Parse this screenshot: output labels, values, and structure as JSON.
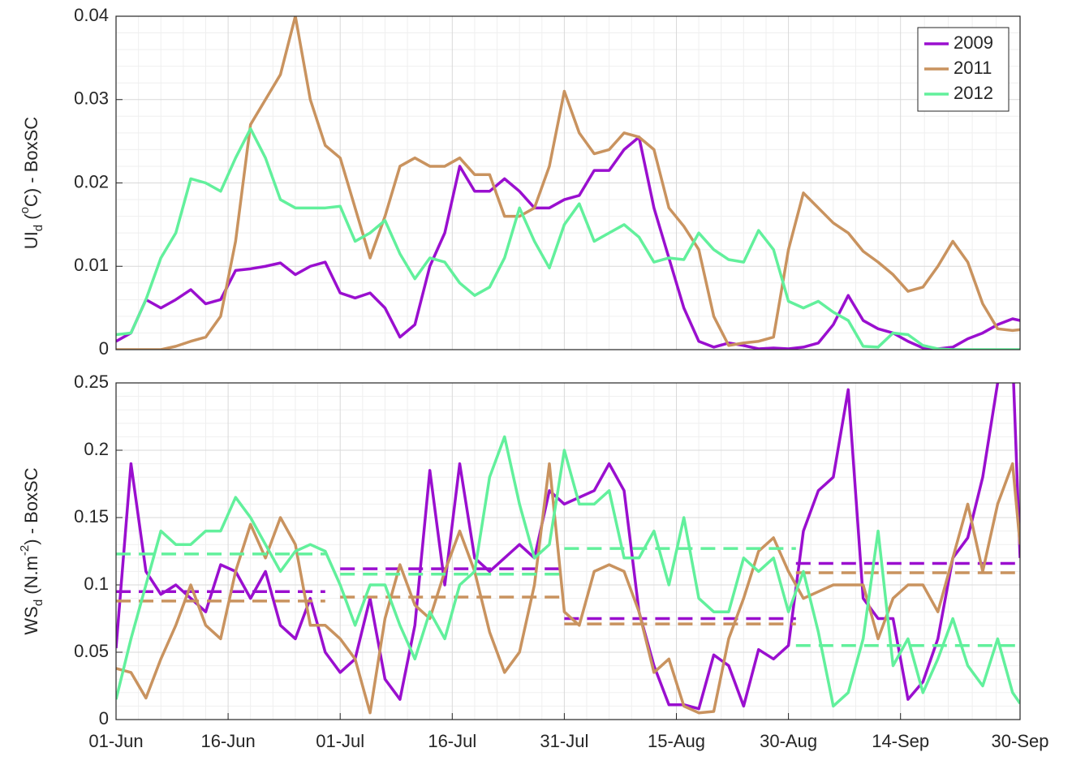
{
  "chart_data": [
    {
      "type": "line",
      "ylabel": [
        "UI",
        "d",
        " (",
        "o",
        "C) - BoxSC"
      ],
      "x": [
        0,
        2,
        4,
        6,
        8,
        10,
        12,
        14,
        16,
        18,
        20,
        22,
        24,
        26,
        28,
        30,
        32,
        34,
        36,
        38,
        40,
        42,
        44,
        46,
        48,
        50,
        52,
        54,
        56,
        58,
        60,
        62,
        64,
        66,
        68,
        70,
        72,
        74,
        76,
        78,
        80,
        82,
        84,
        86,
        88,
        90,
        92,
        94,
        96,
        98,
        100,
        102,
        104,
        106,
        108,
        110,
        112,
        114,
        116,
        118,
        120,
        121
      ],
      "xlim": [
        0,
        121
      ],
      "ylim": [
        0,
        0.04
      ],
      "yticks": [
        0,
        0.01,
        0.02,
        0.03,
        0.04
      ],
      "grid": true,
      "legend": "upper right",
      "series": [
        {
          "name": "2009",
          "color": "#9a0fcf",
          "values": [
            0.001,
            0.002,
            0.006,
            0.005,
            0.006,
            0.0072,
            0.0055,
            0.006,
            0.0095,
            0.0097,
            0.01,
            0.0104,
            0.009,
            0.01,
            0.0105,
            0.0068,
            0.0062,
            0.0068,
            0.005,
            0.0015,
            0.003,
            0.01,
            0.014,
            0.022,
            0.019,
            0.019,
            0.0205,
            0.019,
            0.017,
            0.017,
            0.018,
            0.0185,
            0.0215,
            0.0215,
            0.024,
            0.0255,
            0.017,
            0.011,
            0.005,
            0.001,
            0.0003,
            0.0008,
            0.0005,
            0.0001,
            0.0002,
            0.0001,
            0.0003,
            0.0008,
            0.003,
            0.0065,
            0.0035,
            0.0025,
            0.002,
            0.001,
            0.0002,
            0.0001,
            0.0003,
            0.0013,
            0.002,
            0.003,
            0.0037,
            0.0035
          ]
        },
        {
          "name": "2011",
          "color": "#c9935f",
          "values": [
            0,
            0,
            0,
            0,
            0.0004,
            0.001,
            0.0015,
            0.004,
            0.013,
            0.027,
            0.03,
            0.033,
            0.04,
            0.03,
            0.0245,
            0.023,
            0.017,
            0.011,
            0.016,
            0.022,
            0.023,
            0.022,
            0.022,
            0.023,
            0.021,
            0.021,
            0.016,
            0.016,
            0.017,
            0.022,
            0.031,
            0.026,
            0.0235,
            0.024,
            0.026,
            0.0255,
            0.024,
            0.017,
            0.0148,
            0.012,
            0.004,
            0.0005,
            0.0008,
            0.001,
            0.0015,
            0.012,
            0.0188,
            0.017,
            0.0152,
            0.014,
            0.0118,
            0.0105,
            0.009,
            0.007,
            0.0075,
            0.01,
            0.013,
            0.0105,
            0.0055,
            0.0025,
            0.0023,
            0.0024
          ]
        },
        {
          "name": "2012",
          "color": "#62f09c",
          "values": [
            0.0018,
            0.002,
            0.006,
            0.011,
            0.014,
            0.0205,
            0.02,
            0.019,
            0.023,
            0.0265,
            0.023,
            0.018,
            0.017,
            0.017,
            0.017,
            0.0172,
            0.013,
            0.014,
            0.0155,
            0.0115,
            0.0085,
            0.011,
            0.0105,
            0.008,
            0.0065,
            0.0075,
            0.011,
            0.017,
            0.013,
            0.0098,
            0.015,
            0.0175,
            0.013,
            0.014,
            0.015,
            0.0135,
            0.0105,
            0.011,
            0.0108,
            0.014,
            0.012,
            0.0108,
            0.0105,
            0.0143,
            0.012,
            0.0058,
            0.005,
            0.0058,
            0.0045,
            0.0035,
            0.0004,
            0.0003,
            0.002,
            0.0018,
            0.0005,
            0.0001,
            0,
            0,
            0,
            0,
            0,
            0
          ]
        }
      ]
    },
    {
      "type": "line",
      "ylabel": [
        "WS",
        "d",
        " (N.m",
        "-2",
        ") - BoxSC"
      ],
      "x": [
        0,
        2,
        4,
        6,
        8,
        10,
        12,
        14,
        16,
        18,
        20,
        22,
        24,
        26,
        28,
        30,
        32,
        34,
        36,
        38,
        40,
        42,
        44,
        46,
        48,
        50,
        52,
        54,
        56,
        58,
        60,
        62,
        64,
        66,
        68,
        70,
        72,
        74,
        76,
        78,
        80,
        82,
        84,
        86,
        88,
        90,
        92,
        94,
        96,
        98,
        100,
        102,
        104,
        106,
        108,
        110,
        112,
        114,
        116,
        118,
        120,
        121
      ],
      "xlim": [
        0,
        121
      ],
      "xticks": [
        {
          "value": 0,
          "label": "01-Jun"
        },
        {
          "value": 15,
          "label": "16-Jun"
        },
        {
          "value": 30,
          "label": "01-Jul"
        },
        {
          "value": 45,
          "label": "16-Jul"
        },
        {
          "value": 60,
          "label": "31-Jul"
        },
        {
          "value": 75,
          "label": "15-Aug"
        },
        {
          "value": 90,
          "label": "30-Aug"
        },
        {
          "value": 105,
          "label": "14-Sep"
        },
        {
          "value": 121,
          "label": "30-Sep"
        }
      ],
      "ylim": [
        0,
        0.25
      ],
      "yticks": [
        0,
        0.05,
        0.1,
        0.15,
        0.2,
        0.25
      ],
      "grid": true,
      "mean_x0": [
        0,
        30,
        60,
        91
      ],
      "mean_x1": [
        28,
        60,
        91,
        121
      ],
      "series": [
        {
          "color": "#9a0fcf",
          "means": [
            0.095,
            0.112,
            0.075,
            0.116
          ],
          "values": [
            0.053,
            0.19,
            0.11,
            0.093,
            0.1,
            0.09,
            0.08,
            0.115,
            0.11,
            0.09,
            0.11,
            0.07,
            0.06,
            0.09,
            0.05,
            0.035,
            0.045,
            0.09,
            0.03,
            0.015,
            0.07,
            0.185,
            0.1,
            0.19,
            0.12,
            0.11,
            0.12,
            0.13,
            0.12,
            0.17,
            0.16,
            0.165,
            0.17,
            0.19,
            0.17,
            0.08,
            0.04,
            0.011,
            0.011,
            0.008,
            0.048,
            0.04,
            0.01,
            0.052,
            0.045,
            0.055,
            0.14,
            0.17,
            0.18,
            0.245,
            0.09,
            0.075,
            0.075,
            0.015,
            0.028,
            0.06,
            0.12,
            0.135,
            0.18,
            0.25,
            0.27,
            0.12
          ]
        },
        {
          "color": "#c9935f",
          "means": [
            0.088,
            0.091,
            0.071,
            0.109
          ],
          "values": [
            0.038,
            0.035,
            0.016,
            0.045,
            0.07,
            0.1,
            0.07,
            0.06,
            0.11,
            0.145,
            0.12,
            0.15,
            0.13,
            0.07,
            0.07,
            0.06,
            0.045,
            0.005,
            0.075,
            0.115,
            0.085,
            0.075,
            0.11,
            0.14,
            0.11,
            0.065,
            0.035,
            0.05,
            0.1,
            0.19,
            0.08,
            0.07,
            0.11,
            0.115,
            0.11,
            0.08,
            0.035,
            0.045,
            0.01,
            0.005,
            0.006,
            0.06,
            0.09,
            0.125,
            0.135,
            0.11,
            0.09,
            0.095,
            0.1,
            0.1,
            0.1,
            0.06,
            0.09,
            0.1,
            0.1,
            0.08,
            0.12,
            0.16,
            0.11,
            0.16,
            0.19,
            0.13
          ]
        },
        {
          "color": "#62f09c",
          "means": [
            0.123,
            0.108,
            0.127,
            0.055
          ],
          "values": [
            0.015,
            0.06,
            0.1,
            0.14,
            0.13,
            0.13,
            0.14,
            0.14,
            0.165,
            0.15,
            0.13,
            0.11,
            0.125,
            0.13,
            0.125,
            0.1,
            0.07,
            0.1,
            0.1,
            0.07,
            0.045,
            0.08,
            0.06,
            0.1,
            0.11,
            0.18,
            0.21,
            0.16,
            0.12,
            0.13,
            0.2,
            0.16,
            0.16,
            0.17,
            0.12,
            0.12,
            0.14,
            0.1,
            0.15,
            0.09,
            0.08,
            0.08,
            0.12,
            0.11,
            0.12,
            0.08,
            0.11,
            0.065,
            0.01,
            0.02,
            0.06,
            0.14,
            0.04,
            0.06,
            0.02,
            0.045,
            0.075,
            0.04,
            0.025,
            0.06,
            0.02,
            0.012
          ]
        }
      ]
    }
  ]
}
